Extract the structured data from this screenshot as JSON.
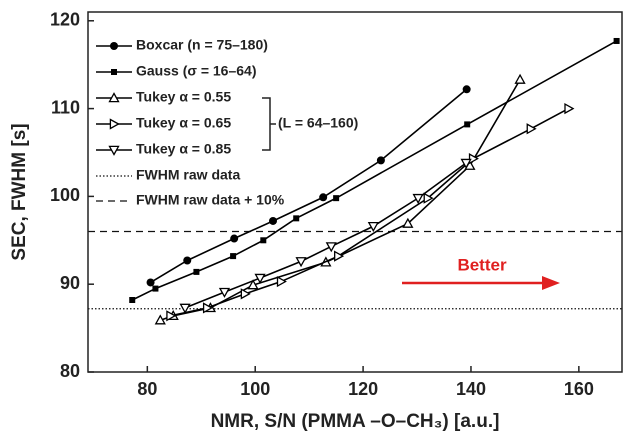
{
  "chart_data": {
    "type": "line",
    "xlabel": "NMR, S/N (PMMA –O–CH₃) [a.u.]",
    "ylabel": "SEC, FWHM [s]",
    "xlim": [
      69,
      168
    ],
    "ylim": [
      80,
      121
    ],
    "xticks": [
      80,
      100,
      120,
      140,
      160
    ],
    "yticks": [
      80,
      90,
      100,
      110,
      120
    ],
    "series": [
      {
        "name": "Boxcar (n = 75–180)",
        "color": "#000000",
        "marker": "circle",
        "x": [
          80.6,
          87.4,
          96.1,
          103.3,
          112.6,
          123.3,
          139.2
        ],
        "values": [
          90.2,
          92.7,
          95.2,
          97.2,
          99.9,
          104.1,
          112.2
        ]
      },
      {
        "name": "Gauss (σ = 16–64)",
        "color": "#000000",
        "marker": "square",
        "x": [
          77.2,
          81.5,
          89.1,
          95.9,
          101.5,
          107.6,
          115.0,
          139.3,
          167.0
        ],
        "values": [
          88.2,
          89.5,
          91.4,
          93.2,
          95.0,
          97.5,
          99.8,
          108.2,
          117.7
        ]
      },
      {
        "name": "Tukey α = 0.55",
        "color": "#000000",
        "marker": "triangle-up",
        "x": [
          82.4,
          84.8,
          91.7,
          99.6,
          113.1,
          128.3,
          139.8,
          149.1
        ],
        "values": [
          85.9,
          86.4,
          87.3,
          89.9,
          92.5,
          96.9,
          103.5,
          113.3
        ]
      },
      {
        "name": "Tukey α = 0.65",
        "color": "#000000",
        "marker": "triangle-right",
        "x": [
          84.3,
          91.1,
          98.1,
          104.8,
          115.4,
          132.0,
          140.4,
          151.1,
          158.1
        ],
        "values": [
          86.4,
          87.3,
          88.9,
          90.3,
          93.2,
          99.8,
          104.3,
          107.7,
          110.0
        ]
      },
      {
        "name": "Tukey α = 0.85",
        "color": "#000000",
        "marker": "triangle-down",
        "x": [
          87.0,
          94.3,
          100.9,
          108.5,
          114.1,
          121.9,
          130.2,
          139.1
        ],
        "values": [
          87.3,
          89.1,
          90.7,
          92.6,
          94.3,
          96.6,
          99.8,
          103.8
        ]
      }
    ],
    "reference_lines": [
      {
        "name": "FWHM raw data",
        "value": 87.2,
        "style": "dotted"
      },
      {
        "name": "FWHM raw data + 10%",
        "value": 96.0,
        "style": "dashed"
      }
    ],
    "group_label": "(L = 64–160)",
    "annotation": {
      "text": "Better",
      "color": "#e02020"
    },
    "legend": "upper left"
  }
}
